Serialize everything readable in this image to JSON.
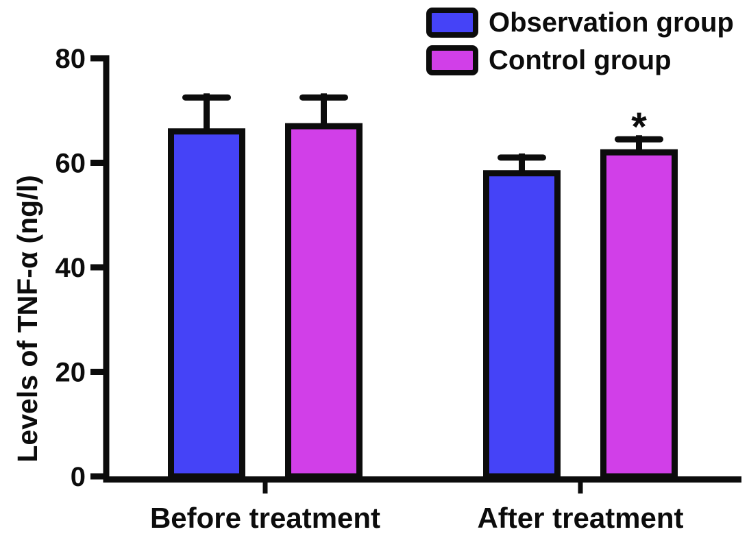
{
  "figure": {
    "background": "#ffffff"
  },
  "chart_data": {
    "type": "bar",
    "title": "",
    "categories": [
      "Before treatment",
      "After treatment"
    ],
    "series": [
      {
        "name": "Observation group",
        "color": "#4543f7",
        "values": [
          66,
          58
        ],
        "errors": [
          6.5,
          3
        ]
      },
      {
        "name": "Control group",
        "color": "#d13fe8",
        "values": [
          67,
          62
        ],
        "errors": [
          5.5,
          2.5
        ]
      }
    ],
    "annotations": [
      {
        "text": "*",
        "category": "After treatment",
        "series": "Control group"
      }
    ],
    "ylabel": "Levels of TNF-α (ng/l)",
    "xlabel": "",
    "ylim": [
      0,
      80
    ],
    "yticks": [
      0,
      20,
      40,
      60,
      80
    ],
    "grid": false,
    "legend_position": "top-right",
    "error_bar_style": "upper-cap",
    "axis_color": "#0c0c0c",
    "bar_border_color": "#0c0c0c"
  }
}
